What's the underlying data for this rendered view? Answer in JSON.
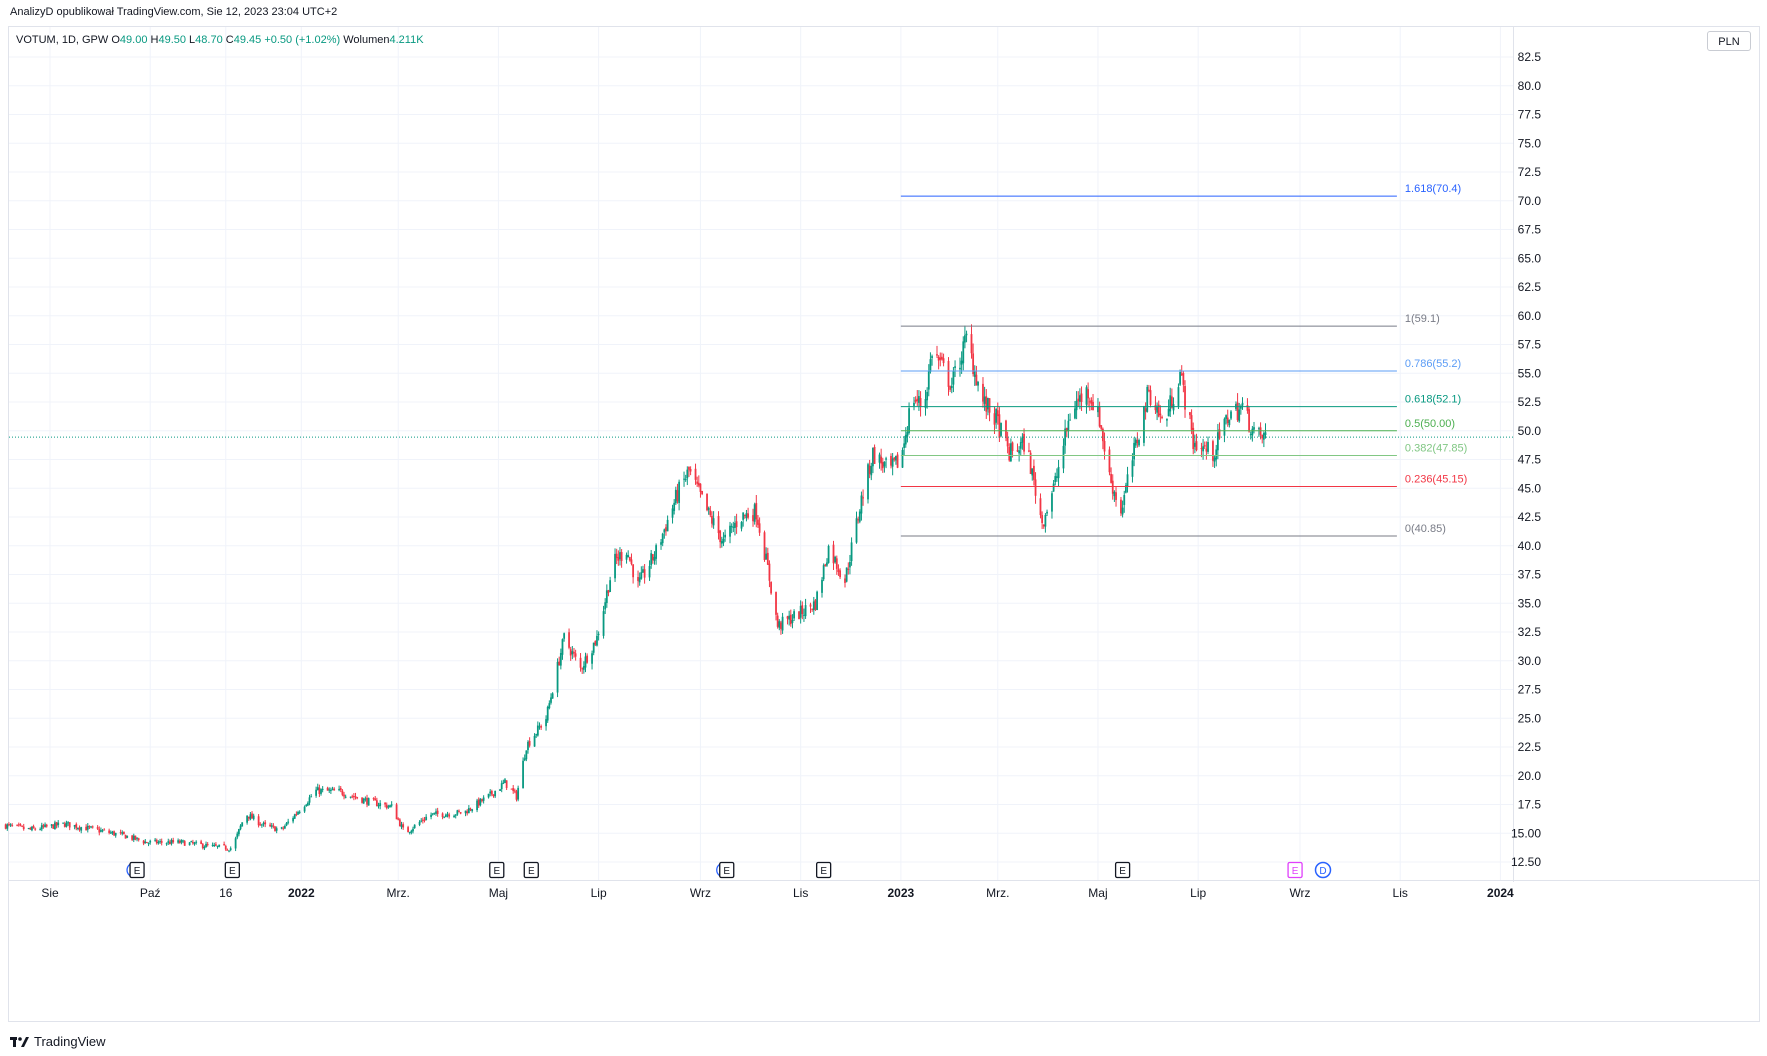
{
  "header": {
    "published": "AnalizyD opublikował TradingView.com, Sie 12, 2023 23:04 UTC+2"
  },
  "legend": {
    "symbol": "VOTUM, 1D, GPW",
    "o_label": "O",
    "o": "49.00",
    "h_label": "H",
    "h": "49.50",
    "l_label": "L",
    "l": "48.70",
    "c_label": "C",
    "c": "49.45",
    "change": "+0.50 (+1.02%)",
    "vol_label": "Wolumen",
    "vol": "4.211K"
  },
  "currency": "PLN",
  "footer": {
    "brand": "TradingView"
  },
  "colors": {
    "up": "#089981",
    "down": "#f23645",
    "grid": "#f0f3fa",
    "fib_1618": "#2962ff",
    "fib_1": "#787b86",
    "fib_0786": "#5b9cf6",
    "fib_0618": "#089981",
    "fib_05": "#4caf50",
    "fib_0382": "#81c784",
    "fib_0236": "#f23645",
    "fib_0": "#787b86",
    "last_price": "#089981",
    "event_e": "#131722",
    "event_e_future": "#e040fb",
    "event_d": "#2962ff"
  },
  "chart_data": {
    "type": "candlestick",
    "ylim": [
      10.5,
      84.0
    ],
    "y_ticks": [
      "82.5",
      "80.0",
      "77.5",
      "75.0",
      "72.5",
      "70.0",
      "67.5",
      "65.0",
      "62.5",
      "60.0",
      "57.5",
      "55.0",
      "52.5",
      "50.0",
      "47.5",
      "45.0",
      "42.5",
      "40.0",
      "37.5",
      "35.0",
      "32.5",
      "30.0",
      "27.5",
      "25.0",
      "22.5",
      "20.0",
      "17.5",
      "15.00",
      "12.50"
    ],
    "x_labels": [
      {
        "t": "Sie",
        "date": "2021-08-01"
      },
      {
        "t": "Paź",
        "date": "2021-10-01"
      },
      {
        "t": "16",
        "date": "2021-11-16"
      },
      {
        "t": "2022",
        "date": "2022-01-01",
        "bold": true
      },
      {
        "t": "Mrz.",
        "date": "2022-03-01"
      },
      {
        "t": "Maj",
        "date": "2022-05-01"
      },
      {
        "t": "Lip",
        "date": "2022-07-01"
      },
      {
        "t": "Wrz",
        "date": "2022-09-01"
      },
      {
        "t": "Lis",
        "date": "2022-11-01"
      },
      {
        "t": "2023",
        "date": "2023-01-01",
        "bold": true
      },
      {
        "t": "Mrz.",
        "date": "2023-03-01"
      },
      {
        "t": "Maj",
        "date": "2023-05-01"
      },
      {
        "t": "Lip",
        "date": "2023-07-01"
      },
      {
        "t": "Wrz",
        "date": "2023-09-01"
      },
      {
        "t": "Lis",
        "date": "2023-11-01"
      },
      {
        "t": "2024",
        "date": "2024-01-01",
        "bold": true
      }
    ],
    "price_path": [
      [
        "2021-07-04",
        15.7
      ],
      [
        "2021-07-20",
        15.3
      ],
      [
        "2021-08-10",
        15.8
      ],
      [
        "2021-08-25",
        15.4
      ],
      [
        "2021-09-15",
        14.8
      ],
      [
        "2021-09-29",
        14.2
      ],
      [
        "2021-10-20",
        14.2
      ],
      [
        "2021-11-10",
        13.8
      ],
      [
        "2021-11-20",
        13.7
      ],
      [
        "2021-11-28",
        16.7
      ],
      [
        "2021-12-10",
        15.6
      ],
      [
        "2021-12-20",
        15.3
      ],
      [
        "2022-01-10",
        18.7
      ],
      [
        "2022-01-25",
        18.6
      ],
      [
        "2022-02-10",
        17.8
      ],
      [
        "2022-02-25",
        17.3
      ],
      [
        "2022-03-05",
        15.0
      ],
      [
        "2022-03-20",
        16.6
      ],
      [
        "2022-04-10",
        16.8
      ],
      [
        "2022-04-25",
        18.2
      ],
      [
        "2022-05-05",
        19.4
      ],
      [
        "2022-05-12",
        18.2
      ],
      [
        "2022-05-18",
        22.6
      ],
      [
        "2022-05-30",
        25.0
      ],
      [
        "2022-06-10",
        32.0
      ],
      [
        "2022-06-20",
        29.3
      ],
      [
        "2022-06-30",
        32.0
      ],
      [
        "2022-07-10",
        38.5
      ],
      [
        "2022-07-18",
        39.7
      ],
      [
        "2022-07-25",
        36.5
      ],
      [
        "2022-08-05",
        39.5
      ],
      [
        "2022-08-18",
        44.5
      ],
      [
        "2022-08-25",
        46.5
      ],
      [
        "2022-09-05",
        43.0
      ],
      [
        "2022-09-15",
        40.3
      ],
      [
        "2022-09-25",
        42.5
      ],
      [
        "2022-10-05",
        43.0
      ],
      [
        "2022-10-12",
        38.0
      ],
      [
        "2022-10-18",
        33.0
      ],
      [
        "2022-10-30",
        34.0
      ],
      [
        "2022-11-10",
        35.0
      ],
      [
        "2022-11-18",
        39.8
      ],
      [
        "2022-11-28",
        37.0
      ],
      [
        "2022-12-08",
        44.0
      ],
      [
        "2022-12-15",
        48.0
      ],
      [
        "2022-12-25",
        46.5
      ],
      [
        "2023-01-01",
        47.5
      ],
      [
        "2023-01-08",
        53.0
      ],
      [
        "2023-01-15",
        52.0
      ],
      [
        "2023-01-20",
        57.0
      ],
      [
        "2023-02-01",
        54.0
      ],
      [
        "2023-02-10",
        58.0
      ],
      [
        "2023-02-20",
        52.5
      ],
      [
        "2023-02-28",
        51.0
      ],
      [
        "2023-03-08",
        48.0
      ],
      [
        "2023-03-18",
        49.0
      ],
      [
        "2023-03-28",
        42.0
      ],
      [
        "2023-04-05",
        45.5
      ],
      [
        "2023-04-15",
        52.0
      ],
      [
        "2023-04-25",
        53.5
      ],
      [
        "2023-05-02",
        51.0
      ],
      [
        "2023-05-08",
        46.0
      ],
      [
        "2023-05-15",
        43.0
      ],
      [
        "2023-05-22",
        47.5
      ],
      [
        "2023-06-01",
        53.5
      ],
      [
        "2023-06-10",
        50.5
      ],
      [
        "2023-06-20",
        55.0
      ],
      [
        "2023-06-28",
        49.0
      ],
      [
        "2023-07-10",
        48.0
      ],
      [
        "2023-07-20",
        51.5
      ],
      [
        "2023-07-28",
        52.0
      ],
      [
        "2023-08-05",
        49.5
      ],
      [
        "2023-08-11",
        49.45
      ]
    ],
    "last_price": 49.45,
    "fibonacci": {
      "x_start": "2023-01-01",
      "x_end": "2023-10-30",
      "levels": [
        {
          "label": "1.618(70.4)",
          "value": 70.4,
          "color_key": "fib_1618"
        },
        {
          "label": "1(59.1)",
          "value": 59.1,
          "color_key": "fib_1"
        },
        {
          "label": "0.786(55.2)",
          "value": 55.2,
          "color_key": "fib_0786"
        },
        {
          "label": "0.618(52.1)",
          "value": 52.1,
          "color_key": "fib_0618"
        },
        {
          "label": "0.5(50.00)",
          "value": 50.0,
          "color_key": "fib_05"
        },
        {
          "label": "0.382(47.85)",
          "value": 47.85,
          "color_key": "fib_0382"
        },
        {
          "label": "0.236(45.15)",
          "value": 45.15,
          "color_key": "fib_0236"
        },
        {
          "label": "0(40.85)",
          "value": 40.85,
          "color_key": "fib_0"
        }
      ]
    },
    "events": [
      {
        "type": "E",
        "date": "2021-09-23",
        "split": true
      },
      {
        "type": "E",
        "date": "2021-11-20"
      },
      {
        "type": "E",
        "date": "2022-04-30"
      },
      {
        "type": "E",
        "date": "2022-05-21"
      },
      {
        "type": "E",
        "date": "2022-09-17",
        "split": true
      },
      {
        "type": "E",
        "date": "2022-11-15"
      },
      {
        "type": "E",
        "date": "2023-05-16"
      },
      {
        "type": "E",
        "date": "2023-08-29",
        "future": true
      },
      {
        "type": "D",
        "date": "2023-09-15"
      }
    ]
  }
}
